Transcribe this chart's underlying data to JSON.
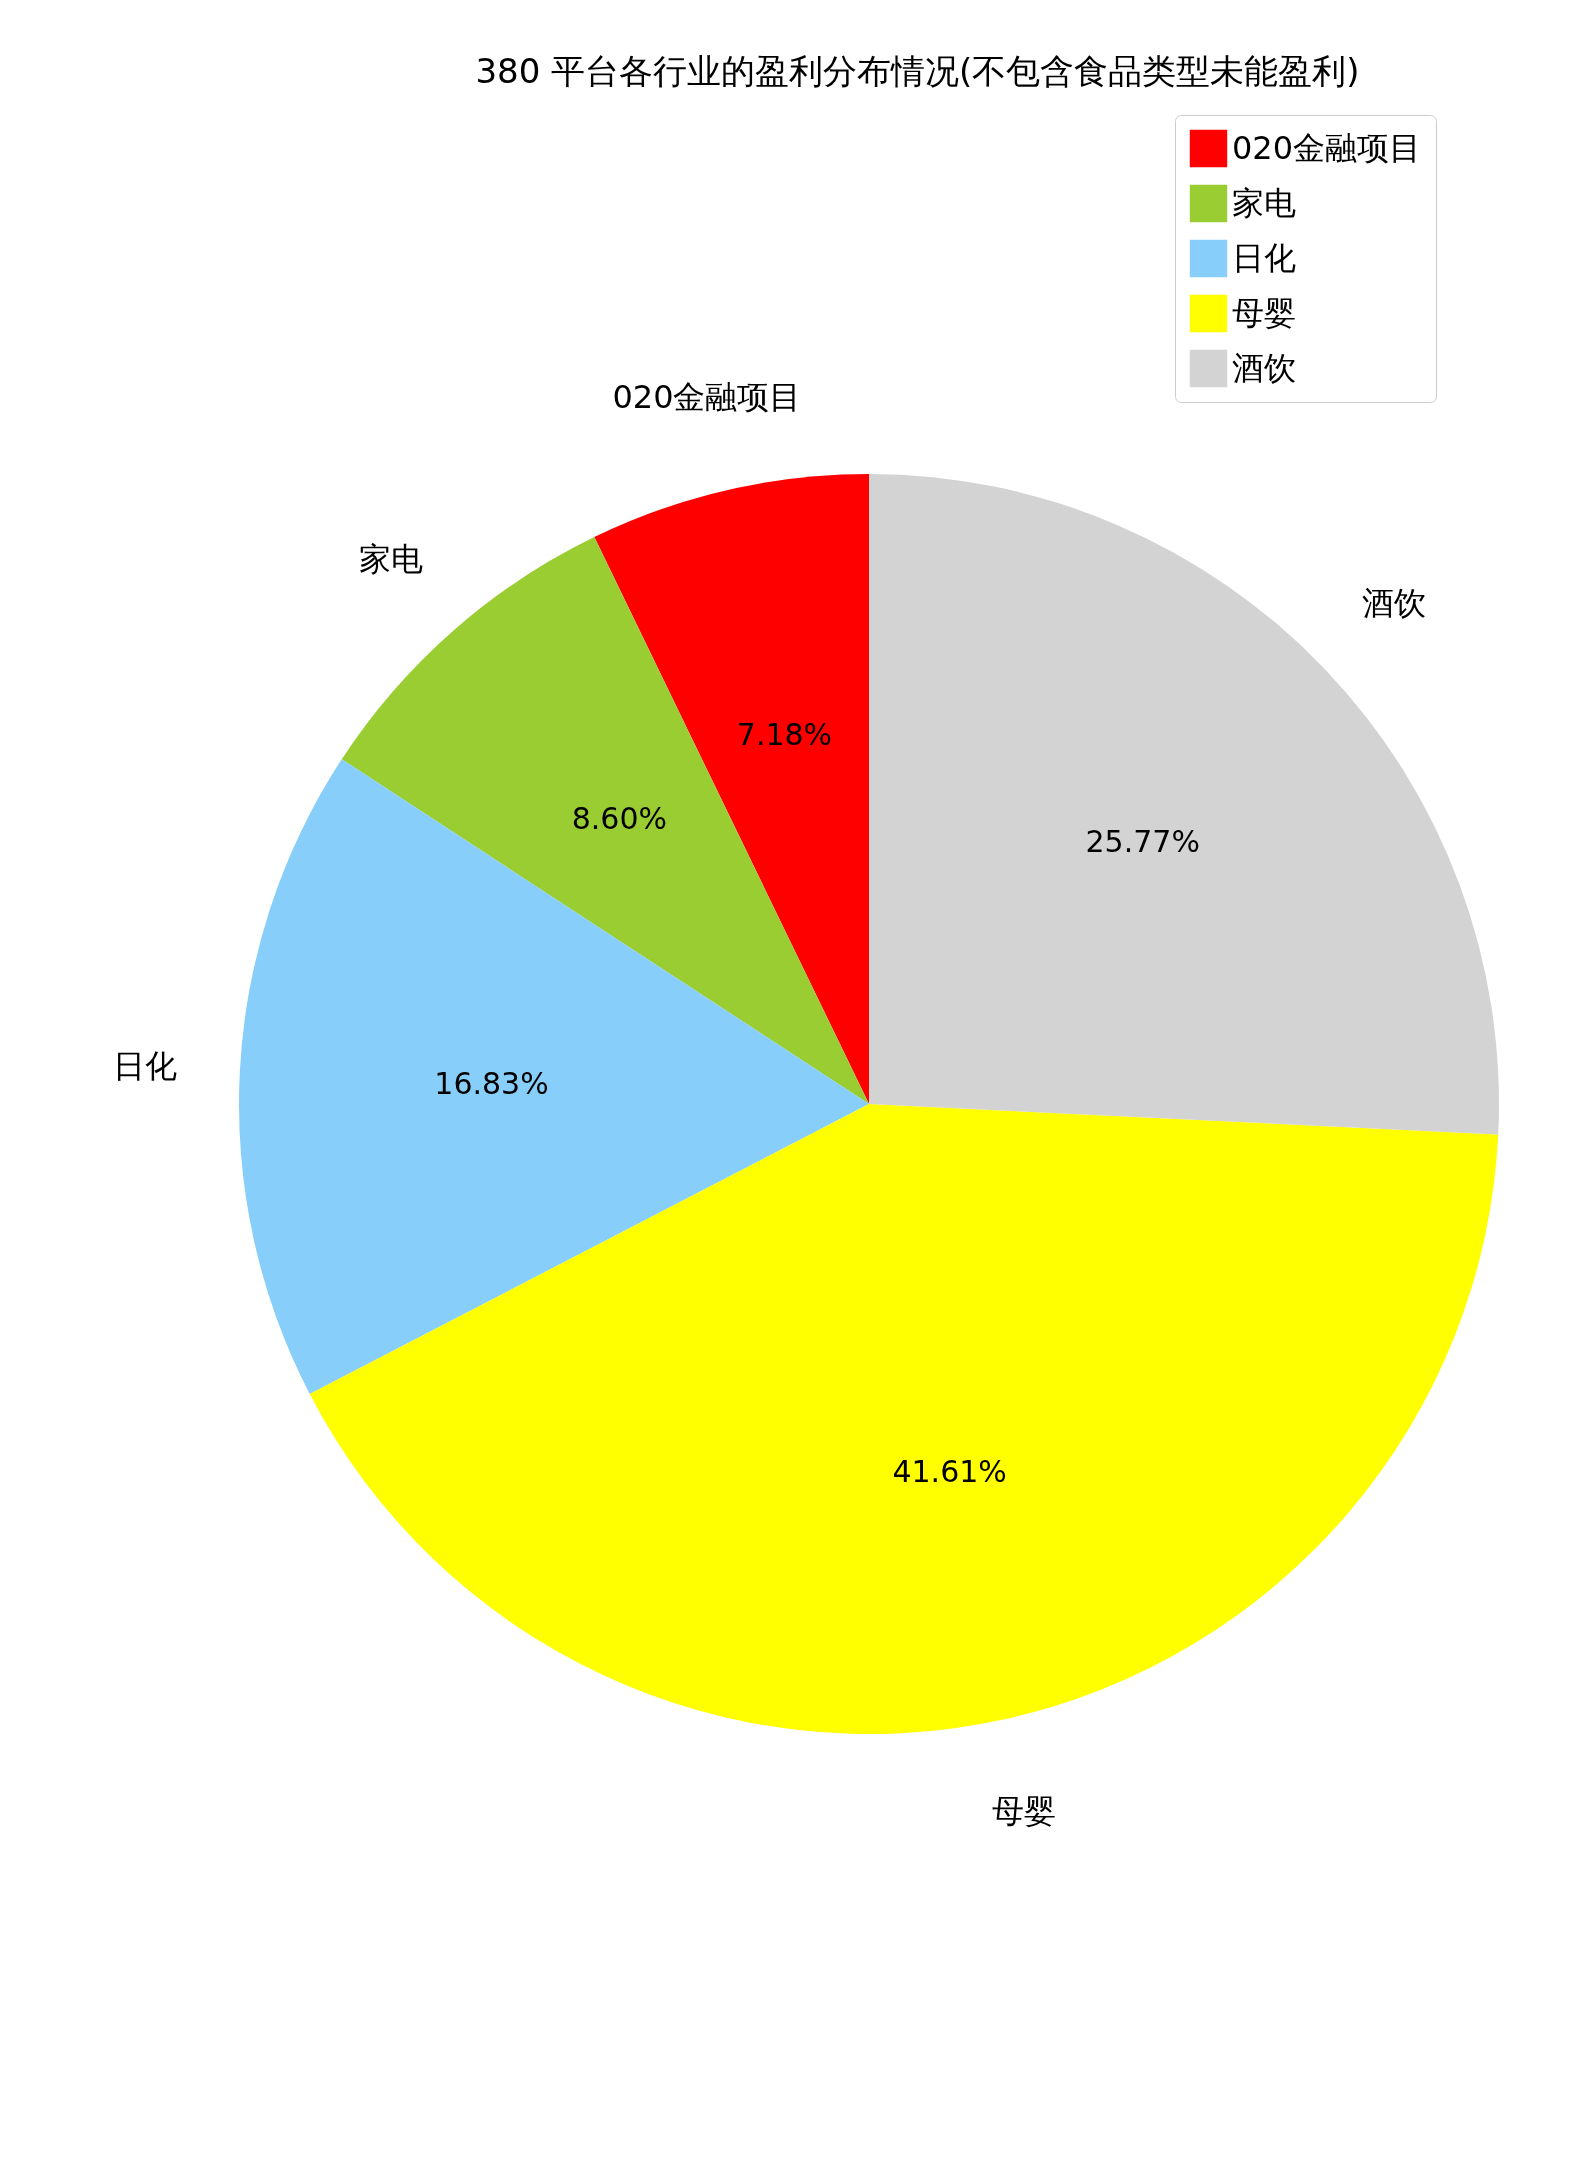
{
  "chart_data": {
    "type": "pie",
    "title": "380 平台各行业的盈利分布情况(不包含食品类型未能盈利)",
    "categories": [
      "020金融项目",
      "家电",
      "日化",
      "母婴",
      "酒饮"
    ],
    "values": [
      7.18,
      8.6,
      16.83,
      41.61,
      25.77
    ],
    "value_labels": [
      "7.18%",
      "8.60%",
      "16.83%",
      "41.61%",
      "25.77%"
    ],
    "colors": [
      "#ff0000",
      "#9acd32",
      "#87cefa",
      "#ffff00",
      "#d3d3d3"
    ],
    "legend": "top right"
  }
}
